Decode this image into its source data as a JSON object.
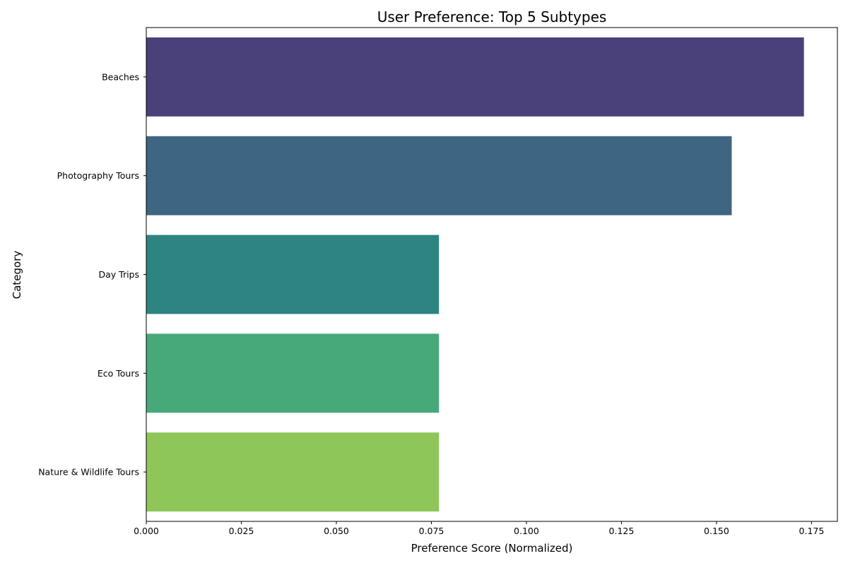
{
  "chart_data": {
    "type": "bar",
    "orientation": "horizontal",
    "title": "User Preference: Top 5 Subtypes",
    "xlabel": "Preference Score (Normalized)",
    "ylabel": "Category",
    "categories": [
      "Beaches",
      "Photography Tours",
      "Day Trips",
      "Eco Tours",
      "Nature & Wildlife Tours"
    ],
    "values": [
      0.173,
      0.154,
      0.077,
      0.077,
      0.077
    ],
    "colors": [
      "#4a417a",
      "#3e6581",
      "#2e8480",
      "#47a97a",
      "#8fc65a"
    ],
    "xlim": [
      0,
      0.1818
    ],
    "xticks": [
      0.0,
      0.025,
      0.05,
      0.075,
      0.1,
      0.125,
      0.15,
      0.175
    ],
    "xtick_labels": [
      "0.000",
      "0.025",
      "0.050",
      "0.075",
      "0.100",
      "0.125",
      "0.150",
      "0.175"
    ],
    "grid": false,
    "legend": "none"
  }
}
